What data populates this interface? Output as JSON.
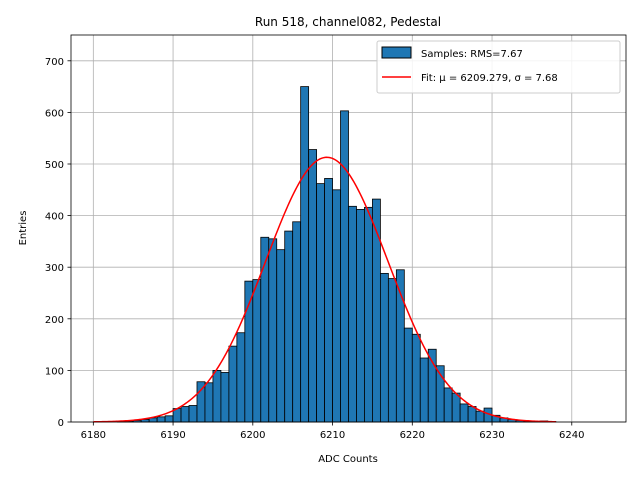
{
  "chart_data": {
    "type": "bar",
    "title": "Run 518, channel082, Pedestal",
    "xlabel": "ADC Counts",
    "ylabel": "Entries",
    "xlim": [
      6177.2,
      6246.8
    ],
    "ylim": [
      0,
      750
    ],
    "xticks": [
      6180,
      6190,
      6200,
      6210,
      6220,
      6230,
      6240
    ],
    "yticks": [
      0,
      100,
      200,
      300,
      400,
      500,
      600,
      700
    ],
    "grid": true,
    "legend_position": "top-right",
    "bar_color": "#1f77b4",
    "fit_color": "#ff0000",
    "histogram": {
      "name": "Samples: RMS=7.67",
      "bin_start": 6183,
      "bin_width": 1,
      "counts": [
        1,
        2,
        3,
        5,
        8,
        10,
        12,
        26,
        30,
        32,
        78,
        76,
        100,
        96,
        147,
        173,
        273,
        276,
        358,
        355,
        334,
        370,
        388,
        650,
        528,
        462,
        472,
        450,
        603,
        418,
        412,
        416,
        432,
        288,
        278,
        295,
        182,
        170,
        124,
        141,
        109,
        66,
        56,
        35,
        30,
        21,
        27,
        13,
        8,
        5,
        3,
        2,
        1,
        2,
        1
      ]
    },
    "fit": {
      "name": "Fit: μ = 6209.279, σ = 7.68",
      "mu": 6209.279,
      "sigma": 7.68,
      "amplitude": 513,
      "x_range": [
        6180,
        6238
      ]
    }
  }
}
